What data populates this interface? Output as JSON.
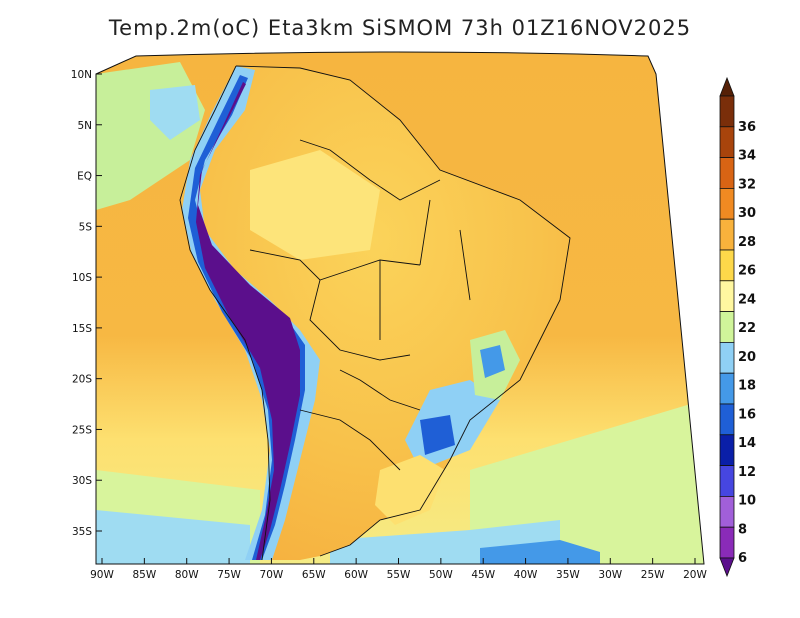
{
  "title": "Temp.2m(oC) Eta3km SiSMOM 73h 01Z16NOV2025",
  "map": {
    "lon_range": [
      -91,
      -19
    ],
    "lat_range": [
      -38,
      11
    ],
    "lon_ticks": [
      {
        "value": -90,
        "label": "90W"
      },
      {
        "value": -85,
        "label": "85W"
      },
      {
        "value": -80,
        "label": "80W"
      },
      {
        "value": -75,
        "label": "75W"
      },
      {
        "value": -70,
        "label": "70W"
      },
      {
        "value": -65,
        "label": "65W"
      },
      {
        "value": -60,
        "label": "60W"
      },
      {
        "value": -55,
        "label": "55W"
      },
      {
        "value": -50,
        "label": "50W"
      },
      {
        "value": -45,
        "label": "45W"
      },
      {
        "value": -40,
        "label": "40W"
      },
      {
        "value": -35,
        "label": "35W"
      },
      {
        "value": -30,
        "label": "30W"
      },
      {
        "value": -25,
        "label": "25W"
      },
      {
        "value": -20,
        "label": "20W"
      }
    ],
    "lat_ticks": [
      {
        "value": 10,
        "label": "10N"
      },
      {
        "value": 5,
        "label": "5N"
      },
      {
        "value": 0,
        "label": "EQ"
      },
      {
        "value": -5,
        "label": "5S"
      },
      {
        "value": -10,
        "label": "10S"
      },
      {
        "value": -15,
        "label": "15S"
      },
      {
        "value": -20,
        "label": "20S"
      },
      {
        "value": -25,
        "label": "25S"
      },
      {
        "value": -30,
        "label": "30S"
      },
      {
        "value": -35,
        "label": "35S"
      }
    ]
  },
  "colorbar": {
    "labels": [
      "6",
      "8",
      "10",
      "12",
      "14",
      "16",
      "18",
      "20",
      "22",
      "24",
      "26",
      "28",
      "30",
      "32",
      "34",
      "36"
    ],
    "colors": [
      "#5b0f8c",
      "#8a2bb8",
      "#a15fd9",
      "#4646e0",
      "#0a1fa8",
      "#1f5fd6",
      "#4499e8",
      "#8fd0f5",
      "#d0f59a",
      "#fff7a0",
      "#fdd84a",
      "#f8b23c",
      "#f08a22",
      "#d86414",
      "#a8440c",
      "#7a2e0a",
      "#552007"
    ]
  }
}
